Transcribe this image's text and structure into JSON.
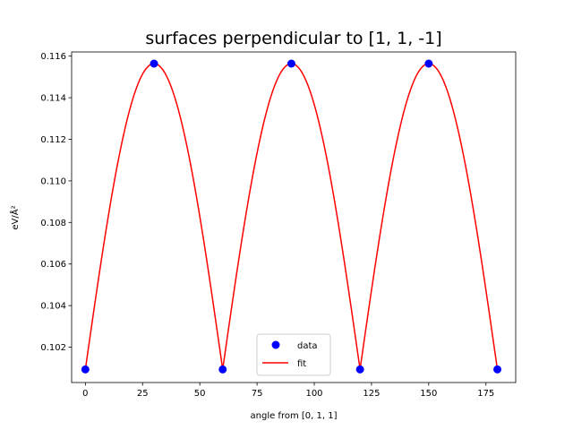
{
  "chart_data": {
    "type": "scatter",
    "title": "surfaces perpendicular to [1, 1, -1]",
    "xlabel": "angle from [0, 1, 1]",
    "ylabel": "eV/Å²",
    "xlim": [
      -6,
      188
    ],
    "ylim": [
      0.1003,
      0.1162
    ],
    "xticks": [
      0,
      25,
      50,
      75,
      100,
      125,
      150,
      175
    ],
    "yticks": [
      0.102,
      0.104,
      0.106,
      0.108,
      0.11,
      0.112,
      0.114,
      0.116
    ],
    "ytick_labels": [
      "0.102",
      "0.104",
      "0.106",
      "0.108",
      "0.110",
      "0.112",
      "0.114",
      "0.116"
    ],
    "grid": false,
    "legend": {
      "position": "lower-center",
      "entries": [
        "data",
        "fit"
      ]
    },
    "series": [
      {
        "name": "data",
        "kind": "markers",
        "color": "#0000ff",
        "x": [
          0,
          30,
          60,
          90,
          120,
          150,
          180
        ],
        "y": [
          0.10093,
          0.11564,
          0.10093,
          0.11564,
          0.10093,
          0.11564,
          0.10093
        ]
      },
      {
        "name": "fit",
        "kind": "line",
        "color": "#ff0000",
        "function": "ymin + (ymax - ymin) * |sin(3x)|",
        "ymin": 0.10093,
        "ymax": 0.11564,
        "x_range": [
          0,
          180
        ]
      }
    ]
  }
}
